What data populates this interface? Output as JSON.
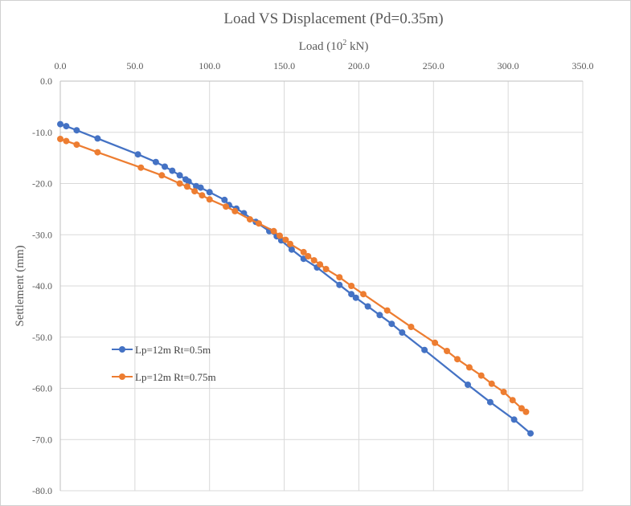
{
  "chart_data": {
    "type": "scatter",
    "title": "Load VS Displacement  (Pd=0.35m)",
    "xlabel": "Load (10",
    "xlabel_sup": "2",
    "xlabel_unit": " kN)",
    "ylabel": "Settlement (mm)",
    "xlim": [
      0,
      350
    ],
    "ylim": [
      -80,
      0
    ],
    "x_axis_position": "top",
    "grid": true,
    "legend_position": "left-middle",
    "x_ticks": [
      "0.0",
      "50.0",
      "100.0",
      "150.0",
      "200.0",
      "250.0",
      "300.0",
      "350.0"
    ],
    "y_ticks": [
      "0.0",
      "-10.0",
      "-20.0",
      "-30.0",
      "-40.0",
      "-50.0",
      "-60.0",
      "-70.0",
      "-80.0"
    ],
    "series": [
      {
        "name": "Lp=12m Rt=0.5m",
        "color": "#4472C4",
        "x": [
          0,
          4,
          11,
          25,
          52,
          64,
          70,
          75,
          80,
          84,
          86,
          91,
          94,
          100,
          110,
          113,
          118,
          123,
          131,
          140,
          145,
          148,
          155,
          163,
          172,
          187,
          195,
          198,
          206,
          214,
          222,
          229,
          244,
          273,
          288,
          304,
          315
        ],
        "y": [
          -8.4,
          -8.8,
          -9.6,
          -11.2,
          -14.3,
          -15.8,
          -16.7,
          -17.5,
          -18.4,
          -19.2,
          -19.6,
          -20.5,
          -20.8,
          -21.7,
          -23.2,
          -24.2,
          -24.9,
          -25.8,
          -27.5,
          -29.3,
          -30.3,
          -31.1,
          -32.9,
          -34.7,
          -36.4,
          -39.8,
          -41.6,
          -42.3,
          -44.0,
          -45.7,
          -47.4,
          -49.1,
          -52.5,
          -59.3,
          -62.7,
          -66.1,
          -68.8
        ]
      },
      {
        "name": "Lp=12m Rt=0.75m",
        "color": "#ED7D31",
        "x": [
          0,
          4,
          11,
          25,
          54,
          68,
          80,
          85,
          90,
          95,
          100,
          111,
          117,
          127,
          133,
          143,
          147,
          151,
          154,
          163,
          166,
          170,
          174,
          178,
          187,
          195,
          203,
          219,
          235,
          251,
          259,
          266,
          274,
          282,
          289,
          297,
          303,
          309,
          312
        ],
        "y": [
          -11.3,
          -11.7,
          -12.4,
          -13.9,
          -16.9,
          -18.4,
          -20.0,
          -20.6,
          -21.5,
          -22.3,
          -23.1,
          -24.5,
          -25.4,
          -27.0,
          -27.8,
          -29.3,
          -30.2,
          -31.0,
          -31.8,
          -33.4,
          -34.2,
          -35.0,
          -35.8,
          -36.7,
          -38.3,
          -40.0,
          -41.6,
          -44.8,
          -48.0,
          -51.1,
          -52.7,
          -54.3,
          -55.9,
          -57.5,
          -59.1,
          -60.7,
          -62.3,
          -63.9,
          -64.6
        ]
      }
    ]
  }
}
